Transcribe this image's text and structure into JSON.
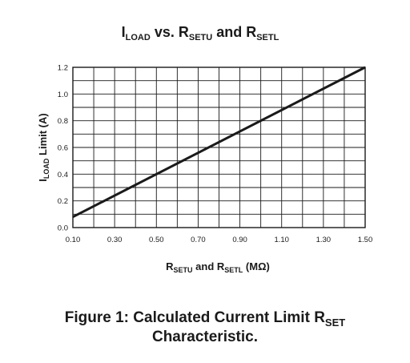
{
  "chart_data": {
    "type": "line",
    "title": {
      "main": "I",
      "sub1": "LOAD",
      "mid": " vs. R",
      "sub2": "SETU",
      "mid2": " and R",
      "sub3": "SETL"
    },
    "xlabel": {
      "r1": "R",
      "sub1": "SETU",
      "mid": " and R",
      "sub2": "SETL",
      "unit": " (MΩ)"
    },
    "ylabel": {
      "main": "I",
      "sub": "LOAD",
      "rest": " Limit (A)"
    },
    "x_ticks": [
      "0.10",
      "0.30",
      "0.50",
      "0.70",
      "0.90",
      "1.10",
      "1.30",
      "1.50"
    ],
    "y_ticks": [
      "0.0",
      "0.2",
      "0.4",
      "0.6",
      "0.8",
      "1.0",
      "1.2"
    ],
    "xlim": [
      0.1,
      1.5
    ],
    "ylim": [
      0,
      1.2
    ],
    "grid": true,
    "series": [
      {
        "x": [
          0.1,
          1.5
        ],
        "y": [
          0.08,
          1.2
        ]
      }
    ]
  },
  "caption": {
    "line1_text": "Figure 1: Calculated Current Limit R",
    "line1_sub": "SET",
    "line2": "Characteristic."
  },
  "colors": {
    "line": "#1a1a1a",
    "grid": "#1a1a1a",
    "text": "#1a1a1a"
  }
}
